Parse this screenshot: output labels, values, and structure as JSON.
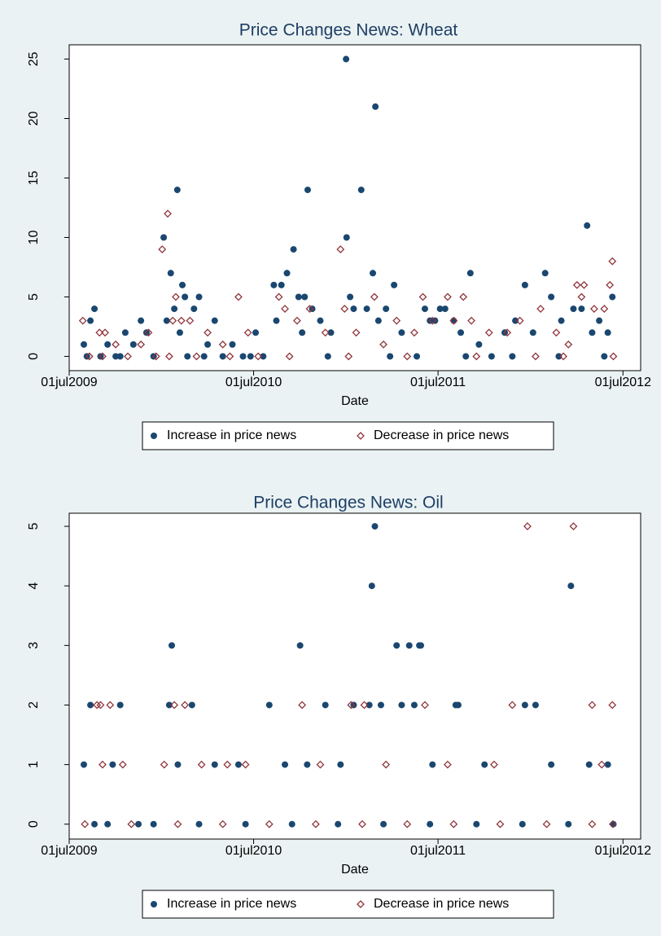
{
  "chart_data": [
    {
      "type": "scatter",
      "title": "Price Changes News: Wheat",
      "x_label": "Date",
      "xlim": [
        "2009-07-01",
        "2012-08-05"
      ],
      "xticks": [
        {
          "value": "2009-07-01",
          "label": "01jul2009"
        },
        {
          "value": "2010-07-01",
          "label": "01jul2010"
        },
        {
          "value": "2011-07-01",
          "label": "01jul2011"
        },
        {
          "value": "2012-07-01",
          "label": "01jul2012"
        }
      ],
      "ylim": [
        -1.2,
        26.2
      ],
      "yticks": [
        0,
        5,
        10,
        15,
        20,
        25
      ],
      "legend": "bottom",
      "series": [
        {
          "name": "Increase in price news",
          "color": "#1a476f",
          "marker": "circle",
          "x": [
            "2009-07-30",
            "2009-08-05",
            "2009-08-12",
            "2009-08-20",
            "2009-09-01",
            "2009-09-15",
            "2009-10-01",
            "2009-10-20",
            "2009-11-05",
            "2009-11-20",
            "2009-12-01",
            "2009-12-15",
            "2010-01-04",
            "2010-01-10",
            "2010-01-18",
            "2010-01-25",
            "2010-01-31",
            "2010-02-05",
            "2010-02-10",
            "2010-02-15",
            "2010-02-20",
            "2010-03-05",
            "2010-03-15",
            "2010-04-01",
            "2010-04-15",
            "2010-05-01",
            "2010-05-20",
            "2010-06-10",
            "2010-07-05",
            "2010-07-20",
            "2010-08-10",
            "2010-08-15",
            "2010-08-25",
            "2010-09-05",
            "2010-09-18",
            "2010-09-28",
            "2010-10-05",
            "2010-10-10",
            "2010-10-16",
            "2010-10-25",
            "2010-11-10",
            "2010-12-01",
            "2010-12-31",
            "2011-01-01",
            "2011-01-08",
            "2011-01-15",
            "2011-01-30",
            "2011-02-10",
            "2011-02-22",
            "2011-02-27",
            "2011-03-05",
            "2011-03-20",
            "2011-04-05",
            "2011-04-20",
            "2011-05-20",
            "2011-06-05",
            "2011-06-15",
            "2011-06-25",
            "2011-07-05",
            "2011-07-15",
            "2011-08-01",
            "2011-08-15",
            "2011-09-03",
            "2011-09-20",
            "2011-10-15",
            "2011-11-10",
            "2011-12-01",
            "2011-12-20",
            "2012-01-05",
            "2012-01-29",
            "2012-02-10",
            "2012-03-01",
            "2012-03-25",
            "2012-04-10",
            "2012-04-21",
            "2012-05-01",
            "2012-05-15",
            "2012-06-01",
            "2012-06-10",
            "2009-10-10",
            "2010-03-25",
            "2010-06-25",
            "2010-11-25",
            "2011-03-28",
            "2011-08-25",
            "2011-11-25",
            "2012-02-25",
            "2012-05-25"
          ],
          "values": [
            1,
            0,
            3,
            4,
            0,
            1,
            0,
            2,
            1,
            3,
            2,
            0,
            10,
            3,
            7,
            4,
            14,
            2,
            6,
            5,
            0,
            4,
            5,
            1,
            3,
            0,
            1,
            0,
            2,
            0,
            6,
            3,
            6,
            7,
            9,
            5,
            2,
            5,
            14,
            4,
            3,
            2,
            25,
            10,
            5,
            4,
            14,
            4,
            7,
            21,
            3,
            4,
            6,
            2,
            0,
            4,
            3,
            3,
            4,
            4,
            3,
            2,
            7,
            1,
            0,
            2,
            3,
            6,
            2,
            7,
            5,
            3,
            4,
            4,
            11,
            2,
            3,
            2,
            5,
            0,
            0,
            0,
            0,
            0,
            0,
            0,
            0,
            0
          ]
        },
        {
          "name": "Decrease in price news",
          "color": "#90353b",
          "marker": "diamond",
          "x": [
            "2009-07-28",
            "2009-08-10",
            "2009-08-30",
            "2009-09-10",
            "2009-10-01",
            "2009-10-25",
            "2009-11-20",
            "2009-12-05",
            "2009-12-20",
            "2010-01-01",
            "2010-01-12",
            "2010-01-22",
            "2010-01-28",
            "2010-02-08",
            "2010-02-25",
            "2010-03-10",
            "2010-04-01",
            "2010-05-01",
            "2010-06-01",
            "2010-06-20",
            "2010-07-10",
            "2010-08-20",
            "2010-09-01",
            "2010-09-25",
            "2010-10-20",
            "2010-11-20",
            "2010-12-20",
            "2010-12-28",
            "2011-01-20",
            "2011-02-25",
            "2011-03-15",
            "2011-04-10",
            "2011-05-15",
            "2011-06-01",
            "2011-06-20",
            "2011-07-20",
            "2011-08-01",
            "2011-08-20",
            "2011-09-05",
            "2011-10-10",
            "2011-11-15",
            "2011-12-10",
            "2012-01-20",
            "2012-02-20",
            "2012-03-15",
            "2012-04-01",
            "2012-04-10",
            "2012-04-15",
            "2012-05-05",
            "2012-05-25",
            "2012-06-05",
            "2012-06-10",
            "2012-06-12",
            "2009-09-05",
            "2010-01-15",
            "2010-05-15",
            "2010-09-10",
            "2011-01-05",
            "2011-05-01",
            "2011-09-15",
            "2012-01-10",
            "2012-03-05"
          ],
          "values": [
            3,
            0,
            2,
            2,
            1,
            0,
            1,
            2,
            0,
            9,
            12,
            3,
            5,
            3,
            3,
            0,
            2,
            1,
            5,
            2,
            0,
            5,
            4,
            3,
            4,
            2,
            9,
            4,
            2,
            5,
            1,
            3,
            2,
            5,
            3,
            5,
            3,
            5,
            3,
            2,
            2,
            3,
            4,
            2,
            1,
            6,
            5,
            6,
            4,
            4,
            6,
            8,
            0,
            0,
            0,
            0,
            0,
            0,
            0,
            0,
            0,
            0
          ]
        }
      ]
    },
    {
      "type": "scatter",
      "title": "Price Changes News: Oil",
      "x_label": "Date",
      "xlim": [
        "2009-07-01",
        "2012-08-05"
      ],
      "xticks": [
        {
          "value": "2009-07-01",
          "label": "01jul2009"
        },
        {
          "value": "2010-07-01",
          "label": "01jul2010"
        },
        {
          "value": "2011-07-01",
          "label": "01jul2011"
        },
        {
          "value": "2012-07-01",
          "label": "01jul2012"
        }
      ],
      "ylim": [
        -0.25,
        5.22
      ],
      "yticks": [
        0,
        1,
        2,
        3,
        4,
        5
      ],
      "legend": "bottom",
      "series": [
        {
          "name": "Increase in price news",
          "color": "#1a476f",
          "marker": "circle",
          "x": [
            "2009-07-30",
            "2009-08-12",
            "2009-08-20",
            "2009-09-25",
            "2009-10-10",
            "2009-11-15",
            "2010-01-15",
            "2010-01-20",
            "2010-02-01",
            "2010-03-01",
            "2010-04-15",
            "2010-06-01",
            "2010-08-01",
            "2010-09-01",
            "2010-10-01",
            "2010-10-15",
            "2010-11-20",
            "2010-12-20",
            "2011-01-15",
            "2011-02-15",
            "2011-02-20",
            "2011-02-26",
            "2011-03-10",
            "2011-04-10",
            "2011-04-20",
            "2011-05-05",
            "2011-05-15",
            "2011-05-25",
            "2011-05-28",
            "2011-06-20",
            "2011-08-05",
            "2011-08-10",
            "2011-10-01",
            "2011-12-20",
            "2012-01-10",
            "2012-02-10",
            "2012-03-20",
            "2012-04-25",
            "2012-06-01",
            "2009-09-15",
            "2009-12-15",
            "2010-03-15",
            "2010-06-15",
            "2010-09-15",
            "2010-12-15",
            "2011-03-15",
            "2011-06-15",
            "2011-09-15",
            "2011-12-15",
            "2012-03-15",
            "2012-06-12"
          ],
          "values": [
            1,
            2,
            0,
            1,
            2,
            0,
            2,
            3,
            1,
            2,
            1,
            1,
            2,
            1,
            3,
            1,
            2,
            1,
            2,
            2,
            4,
            5,
            2,
            3,
            2,
            3,
            2,
            3,
            3,
            1,
            2,
            2,
            1,
            2,
            2,
            1,
            4,
            1,
            1,
            0,
            0,
            0,
            0,
            0,
            0,
            0,
            0,
            0,
            0,
            0,
            0
          ]
        },
        {
          "name": "Decrease in price news",
          "color": "#90353b",
          "marker": "diamond",
          "x": [
            "2009-08-25",
            "2009-09-01",
            "2009-09-20",
            "2009-10-15",
            "2010-01-25",
            "2010-02-15",
            "2010-03-20",
            "2010-06-15",
            "2010-10-05",
            "2011-01-10",
            "2011-02-05",
            "2011-06-05",
            "2011-11-25",
            "2011-12-25",
            "2012-03-25",
            "2012-05-01",
            "2012-06-10",
            "2009-09-05",
            "2010-01-05",
            "2010-05-10",
            "2010-11-10",
            "2011-03-20",
            "2011-07-20",
            "2011-10-20",
            "2012-05-20",
            "2009-08-01",
            "2009-11-01",
            "2010-02-01",
            "2010-05-01",
            "2010-08-01",
            "2010-11-01",
            "2011-02-01",
            "2011-05-01",
            "2011-08-01",
            "2011-11-01",
            "2012-02-01",
            "2012-05-01",
            "2012-06-11"
          ],
          "values": [
            2,
            2,
            2,
            1,
            2,
            2,
            1,
            1,
            2,
            2,
            2,
            2,
            2,
            5,
            5,
            2,
            2,
            1,
            1,
            1,
            1,
            1,
            1,
            1,
            1,
            0,
            0,
            0,
            0,
            0,
            0,
            0,
            0,
            0,
            0,
            0,
            0,
            0
          ]
        }
      ]
    }
  ]
}
